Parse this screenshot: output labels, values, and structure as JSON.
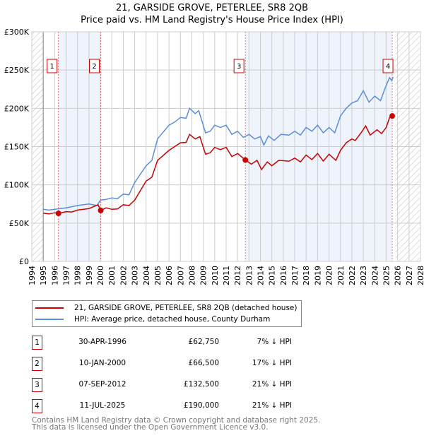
{
  "chart_data": {
    "type": "line",
    "title": "21, GARSIDE GROVE, PETERLEE, SR8 2QB",
    "subtitle": "Price paid vs. HM Land Registry's House Price Index (HPI)",
    "xlim": [
      1994,
      2028
    ],
    "ylim": [
      0,
      300000
    ],
    "x_ticks": [
      "1994",
      "1995",
      "1996",
      "1997",
      "1998",
      "1999",
      "2000",
      "2001",
      "2002",
      "2003",
      "2004",
      "2005",
      "2006",
      "2007",
      "2008",
      "2009",
      "2010",
      "2011",
      "2012",
      "2013",
      "2014",
      "2015",
      "2016",
      "2017",
      "2018",
      "2019",
      "2020",
      "2021",
      "2022",
      "2023",
      "2024",
      "2025",
      "2026",
      "2027",
      "2028"
    ],
    "y_ticks": [
      {
        "v": 0,
        "label": "£0"
      },
      {
        "v": 50000,
        "label": "£50K"
      },
      {
        "v": 100000,
        "label": "£100K"
      },
      {
        "v": 150000,
        "label": "£150K"
      },
      {
        "v": 200000,
        "label": "£200K"
      },
      {
        "v": 250000,
        "label": "£250K"
      },
      {
        "v": 300000,
        "label": "£300K"
      }
    ],
    "grid": true,
    "shaded_periods": [
      [
        1996.33,
        2000.03
      ],
      [
        2012.68,
        2025.53
      ]
    ],
    "hatched_periods": [
      [
        1994,
        1995
      ],
      [
        2025.8,
        2028
      ]
    ],
    "series": [
      {
        "name": "21, GARSIDE GROVE, PETERLEE, SR8 2QB (detached house)",
        "color": "#cc0000",
        "x": [
          1995,
          1995.5,
          1996,
          1996.33,
          1997,
          1997.5,
          1998,
          1999,
          1999.8,
          2000.03,
          2000.5,
          2001,
          2001.5,
          2002,
          2002.5,
          2003,
          2004,
          2004.5,
          2005,
          2006,
          2006.5,
          2007,
          2007.5,
          2007.8,
          2008.3,
          2008.7,
          2009.2,
          2009.6,
          2010,
          2010.5,
          2011,
          2011.5,
          2012,
          2012.68,
          2013.2,
          2013.7,
          2014.1,
          2014.6,
          2015,
          2015.6,
          2016.5,
          2017,
          2017.5,
          2018,
          2018.5,
          2019,
          2019.5,
          2020,
          2020.6,
          2021,
          2021.5,
          2022,
          2022.3,
          2022.8,
          2023.2,
          2023.6,
          2024.2,
          2024.6,
          2025,
          2025.3,
          2025.53
        ],
        "y": [
          63000,
          62000,
          63500,
          62750,
          65000,
          64500,
          67000,
          69000,
          74000,
          66500,
          70000,
          68000,
          68500,
          74000,
          73000,
          80000,
          105000,
          110000,
          132000,
          145000,
          150000,
          155000,
          155500,
          166000,
          160000,
          163000,
          140000,
          142000,
          149000,
          146000,
          149000,
          137000,
          141000,
          132500,
          127000,
          132000,
          120000,
          130000,
          125000,
          132000,
          131000,
          135000,
          130000,
          139000,
          133000,
          141000,
          131000,
          140000,
          132000,
          145000,
          155000,
          160000,
          158000,
          168000,
          177000,
          165000,
          172000,
          167000,
          175000,
          188000,
          190000
        ]
      },
      {
        "name": "HPI: Average price, detached house, County Durham",
        "color": "#5b8fd6",
        "x": [
          1995,
          1995.5,
          1996,
          1997,
          1998,
          1999,
          1999.7,
          2000,
          2000.5,
          2001,
          2001.5,
          2002,
          2002.5,
          2003,
          2004,
          2004.5,
          2005,
          2006,
          2006.5,
          2007,
          2007.5,
          2007.8,
          2008.3,
          2008.6,
          2009.2,
          2009.6,
          2010,
          2010.5,
          2011,
          2011.5,
          2012,
          2012.5,
          2013,
          2013.5,
          2014,
          2014.3,
          2014.7,
          2015.2,
          2015.8,
          2016.5,
          2017,
          2017.5,
          2018,
          2018.5,
          2019,
          2019.5,
          2020,
          2020.5,
          2021,
          2021.5,
          2022,
          2022.5,
          2023,
          2023.5,
          2024,
          2024.5,
          2025,
          2025.3,
          2025.5,
          2025.6
        ],
        "y": [
          68000,
          67000,
          68000,
          70000,
          73000,
          75000,
          73000,
          80000,
          81000,
          83000,
          82000,
          88000,
          87000,
          103000,
          125000,
          132000,
          160000,
          178000,
          182000,
          188000,
          187000,
          200000,
          193000,
          197000,
          168000,
          170000,
          178000,
          175000,
          178000,
          166000,
          170000,
          162000,
          166000,
          160000,
          163000,
          152000,
          164000,
          158000,
          166000,
          165000,
          170000,
          165000,
          175000,
          170000,
          178000,
          168000,
          175000,
          168000,
          190000,
          200000,
          207000,
          210000,
          223000,
          208000,
          216000,
          210000,
          230000,
          240000,
          236000,
          241000
        ]
      }
    ],
    "sales": [
      {
        "id": "1",
        "x": 1996.33,
        "price": 62750
      },
      {
        "id": "2",
        "x": 2000.03,
        "price": 66500
      },
      {
        "id": "3",
        "x": 2012.68,
        "price": 132500
      },
      {
        "id": "4",
        "x": 2025.53,
        "price": 190000
      }
    ]
  },
  "legend": {
    "property": "21, GARSIDE GROVE, PETERLEE, SR8 2QB (detached house)",
    "hpi": "HPI: Average price, detached house, County Durham"
  },
  "transactions": [
    {
      "id": "1",
      "date": "30-APR-1996",
      "price": "£62,750",
      "hpi": "7% ↓ HPI"
    },
    {
      "id": "2",
      "date": "10-JAN-2000",
      "price": "£66,500",
      "hpi": "17% ↓ HPI"
    },
    {
      "id": "3",
      "date": "07-SEP-2012",
      "price": "£132,500",
      "hpi": "21% ↓ HPI"
    },
    {
      "id": "4",
      "date": "11-JUL-2025",
      "price": "£190,000",
      "hpi": "21% ↓ HPI"
    }
  ],
  "footer": {
    "line1": "Contains HM Land Registry data © Crown copyright and database right 2025.",
    "line2": "This data is licensed under the Open Government Licence v3.0."
  }
}
